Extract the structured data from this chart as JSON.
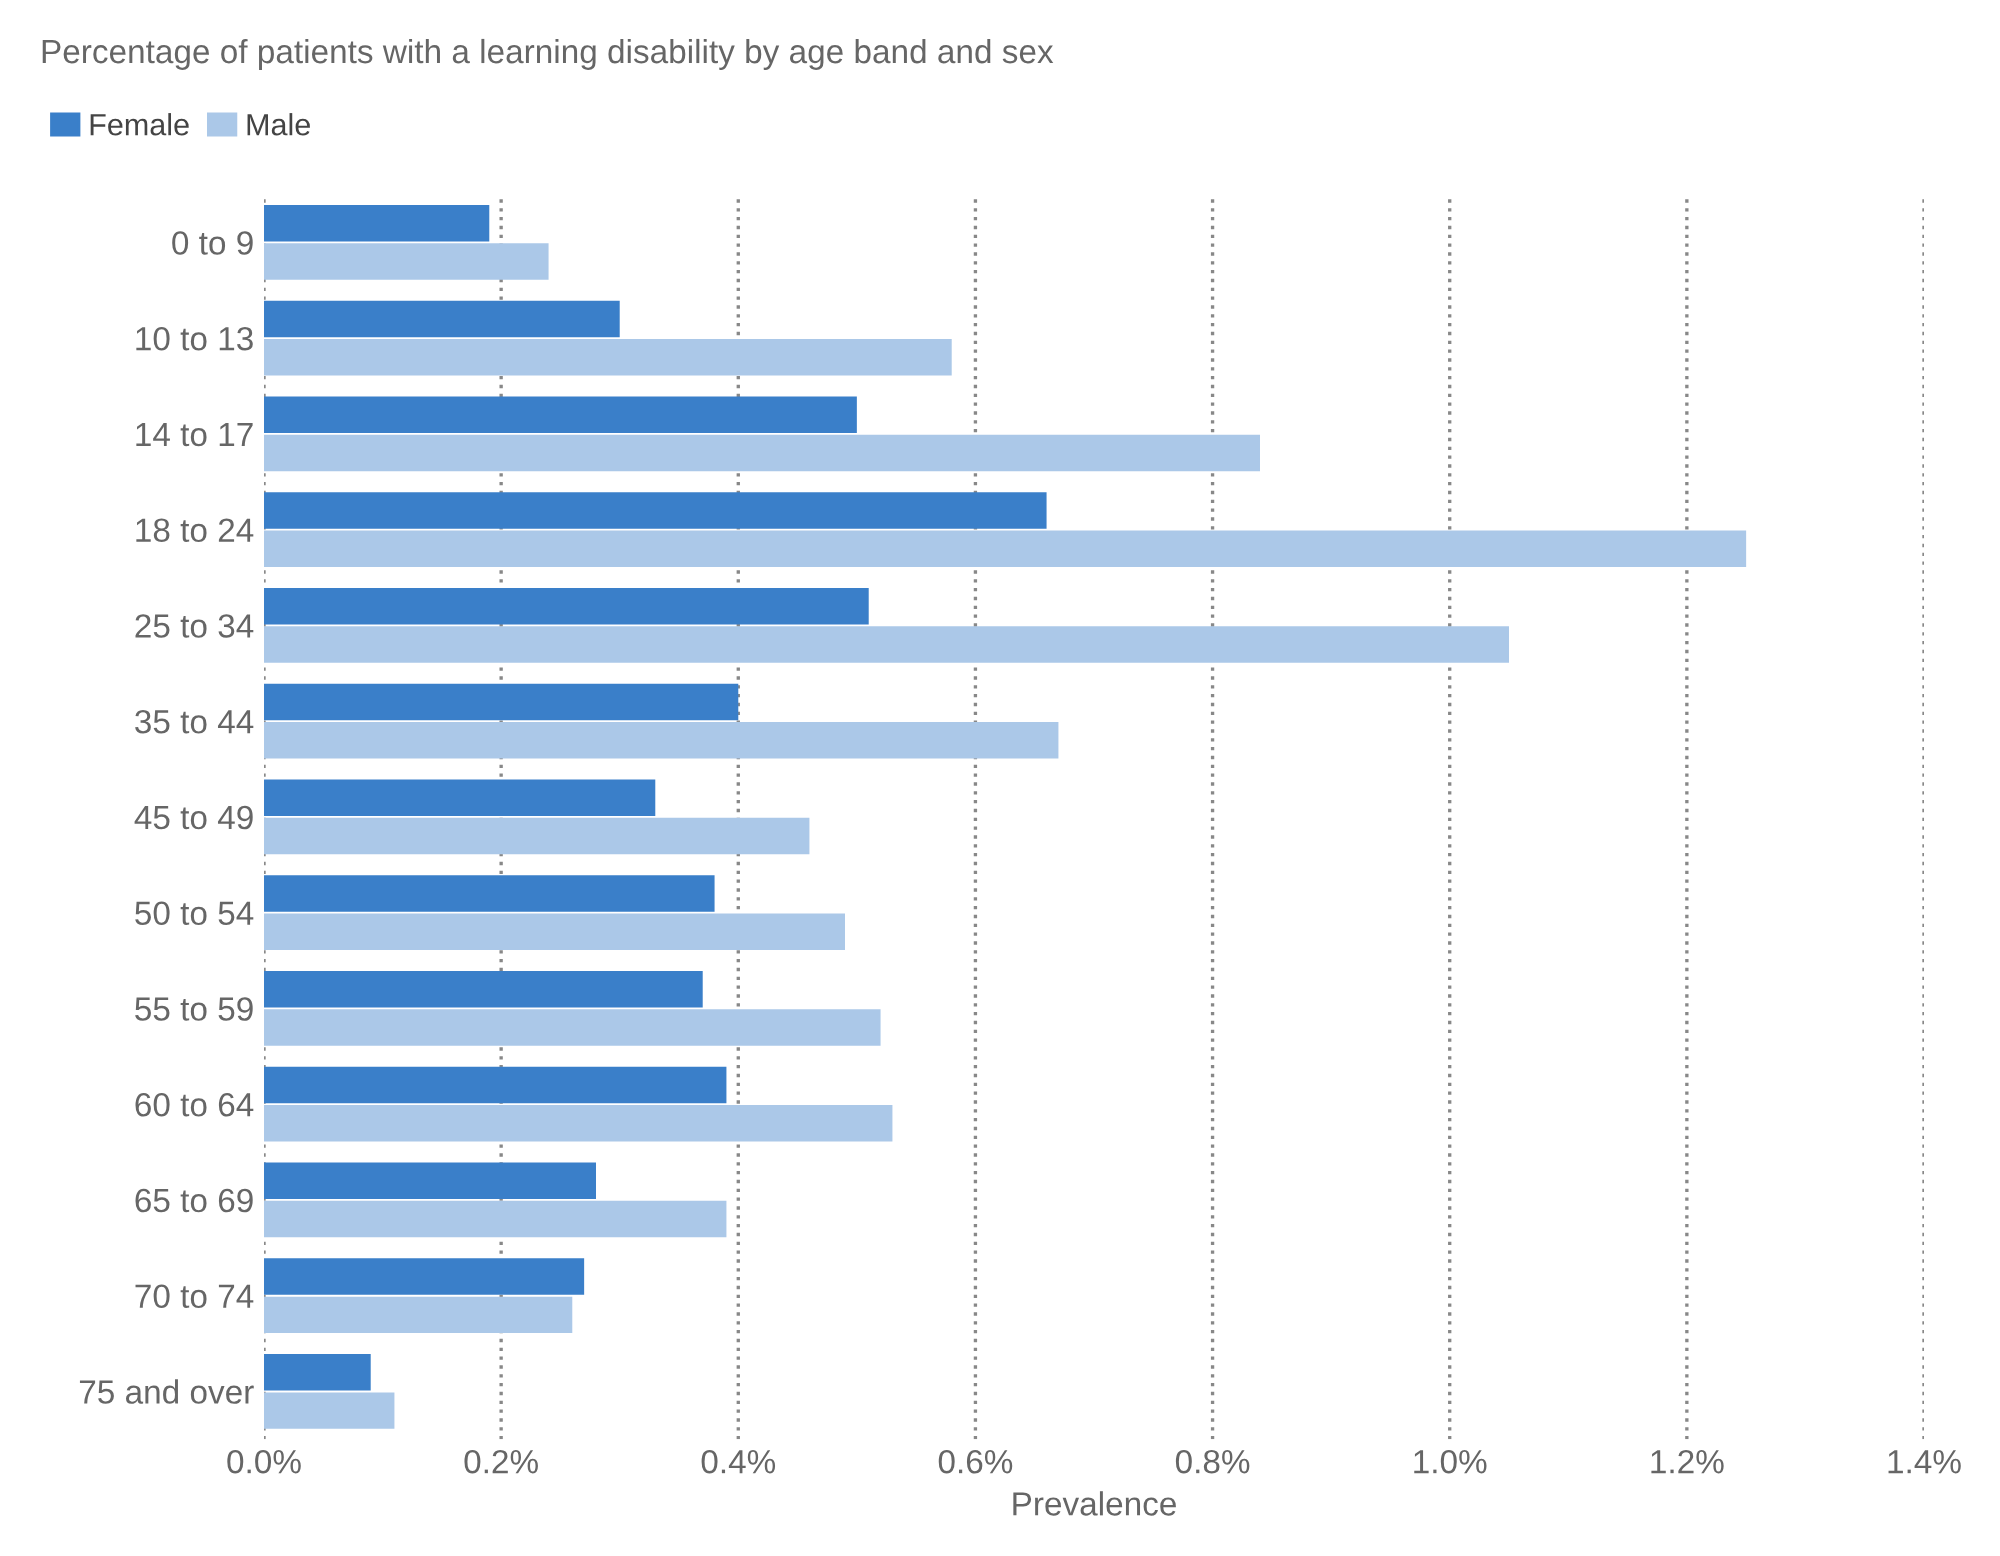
{
  "chart_data": {
    "type": "bar",
    "orientation": "horizontal",
    "title": "Percentage of patients with a learning disability by age band and sex",
    "xlabel": "Prevalence",
    "categories": [
      "0 to 9",
      "10 to 13",
      "14 to 17",
      "18 to 24",
      "25 to 34",
      "35 to 44",
      "45 to 49",
      "50 to 54",
      "55 to 59",
      "60 to 64",
      "65 to 69",
      "70 to 74",
      "75 and over"
    ],
    "series": [
      {
        "name": "Female",
        "color": "#3a7fc9",
        "values": [
          0.19,
          0.3,
          0.5,
          0.66,
          0.51,
          0.4,
          0.33,
          0.38,
          0.37,
          0.39,
          0.28,
          0.27,
          0.09
        ]
      },
      {
        "name": "Male",
        "color": "#abc8e8",
        "values": [
          0.24,
          0.58,
          0.84,
          1.25,
          1.05,
          0.67,
          0.46,
          0.49,
          0.52,
          0.53,
          0.39,
          0.26,
          0.11
        ]
      }
    ],
    "xlim": [
      0,
      1.4
    ],
    "xticks": [
      {
        "value": 0,
        "label": "0.0%"
      },
      {
        "value": 0.2,
        "label": "0.2%"
      },
      {
        "value": 0.4,
        "label": "0.4%"
      },
      {
        "value": 0.6,
        "label": "0.6%"
      },
      {
        "value": 0.8,
        "label": "0.8%"
      },
      {
        "value": 1.0,
        "label": "1.0%"
      },
      {
        "value": 1.2,
        "label": "1.2%"
      },
      {
        "value": 1.4,
        "label": "1.4%"
      }
    ],
    "grid": "x",
    "legend": "top left"
  }
}
